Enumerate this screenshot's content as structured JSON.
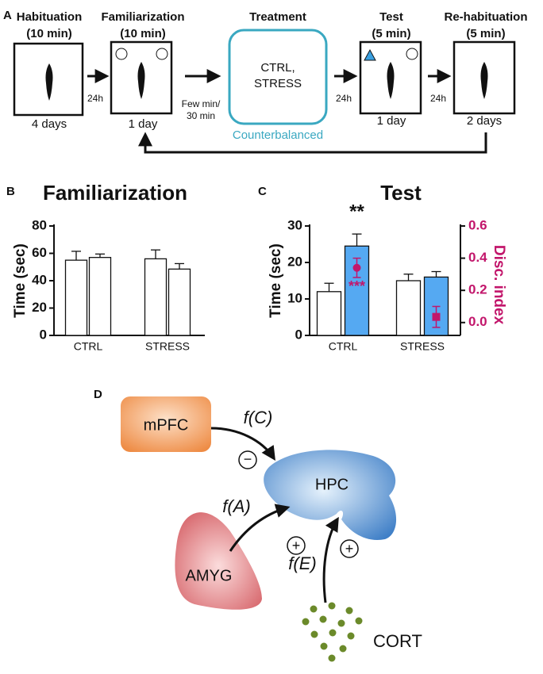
{
  "panel_a": {
    "label": "A",
    "steps": [
      {
        "title": "Habituation",
        "duration": "(10 min)",
        "caption": "4 days"
      },
      {
        "title": "Familiarization",
        "duration": "(10 min)",
        "caption": "1 day"
      },
      {
        "title": "Treatment",
        "line1": "CTRL,",
        "line2": "STRESS",
        "caption": "Counterbalanced"
      },
      {
        "title": "Test",
        "duration": "(5 min)",
        "caption": "1 day"
      },
      {
        "title": "Re-habituation",
        "duration": "(5 min)",
        "caption": "2 days"
      }
    ],
    "intervals": [
      "24h",
      "Few min/",
      "30 min",
      "24h",
      "24h"
    ]
  },
  "chart_data": [
    {
      "type": "bar",
      "label": "B",
      "title": "Familiarization",
      "y_label": "Time (sec)",
      "categories": [
        "CTRL",
        "STRESS"
      ],
      "series": [
        {
          "color": "#ffffff",
          "values": [
            55,
            56
          ],
          "errors": [
            6.5,
            6.5
          ]
        },
        {
          "color": "#ffffff",
          "values": [
            57,
            48.5
          ],
          "errors": [
            2.5,
            4
          ]
        }
      ],
      "ylim": [
        0,
        80
      ],
      "yticks": [
        0,
        20,
        40,
        60,
        80
      ]
    },
    {
      "type": "bar",
      "label": "C",
      "title": "Test",
      "y_label": "Time (sec)",
      "y2_label": "Disc. index",
      "categories": [
        "CTRL",
        "STRESS"
      ],
      "series": [
        {
          "color": "#ffffff",
          "values": [
            12,
            15
          ],
          "errors": [
            2.3,
            1.8
          ]
        },
        {
          "color": "#55a9f2",
          "values": [
            24.5,
            16
          ],
          "errors": [
            3.3,
            1.5
          ]
        },
        {
          "color": "#c2166b",
          "axis": "y2",
          "markers": [
            "circle",
            "square"
          ],
          "values": [
            0.34,
            0.035
          ],
          "errors": [
            0.06,
            0.065
          ]
        }
      ],
      "annotations": [
        {
          "text": "**"
        },
        {
          "text": "***",
          "color": "#c2166b"
        }
      ],
      "ylim": [
        0,
        30
      ],
      "yticks": [
        0,
        10,
        20,
        30
      ],
      "y2lim": [
        -0.08,
        0.6
      ],
      "y2ticks": [
        {
          "value": 0,
          "label": "0.0"
        },
        0.2,
        0.4,
        0.6
      ]
    }
  ],
  "panel_d": {
    "label": "D",
    "nodes": [
      "mPFC",
      "HPC",
      "AMYG",
      "CORT"
    ],
    "edges": [
      {
        "label": "f(C)",
        "sign": "−"
      },
      {
        "label": "f(A)",
        "sign": "+"
      },
      {
        "label": "f(E)",
        "sign": "+"
      }
    ]
  }
}
